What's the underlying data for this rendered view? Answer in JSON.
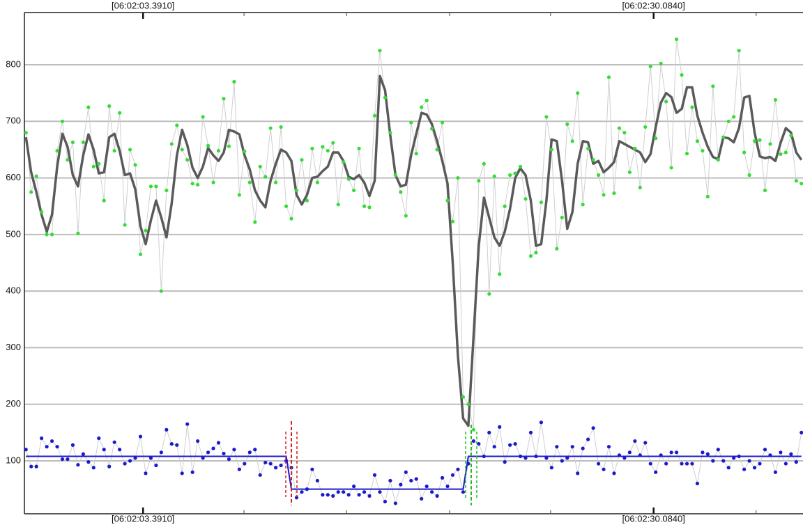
{
  "chart_data": {
    "type": "line",
    "xlim": [
      -0.3,
      149.3
    ],
    "ylim": [
      6.5,
      892.3
    ],
    "yticks": [
      100,
      200,
      300,
      400,
      500,
      600,
      700,
      800
    ],
    "xticks": [
      {
        "value": 22.5,
        "label": "[06:02:03.3910]"
      },
      {
        "value": 120.6,
        "label": "[06:02:30.0840]"
      }
    ],
    "xminorticks": [
      41.9,
      61.6,
      81.4,
      100.8,
      140.3
    ],
    "grid": true,
    "series": [
      {
        "color": "#33dd33",
        "kind": "points",
        "values": [
          680,
          575,
          603,
          540,
          500,
          500,
          648,
          700,
          632,
          663,
          502,
          663,
          725,
          620,
          625,
          560,
          727,
          648,
          715,
          517,
          650,
          623,
          465,
          507,
          585,
          585,
          400,
          578,
          660,
          693,
          650,
          632,
          590,
          588,
          708,
          657,
          592,
          648,
          740,
          656,
          770,
          570,
          647,
          592,
          522,
          620,
          602,
          688,
          592,
          690,
          550,
          528,
          578,
          632,
          560,
          652,
          592,
          655,
          648,
          662,
          553,
          628,
          598,
          578,
          652,
          550,
          548,
          710,
          825,
          742,
          680,
          605,
          575,
          533,
          698,
          643,
          725,
          737,
          687,
          650,
          698,
          560,
          523,
          600,
          213,
          200,
          155,
          595,
          625,
          395,
          603,
          430,
          550,
          605,
          608,
          620,
          563,
          462,
          468,
          557,
          708,
          650,
          475,
          530,
          695,
          665,
          750,
          553,
          652,
          632,
          605,
          570,
          778,
          573,
          688,
          680,
          610,
          652,
          583,
          690,
          797,
          670,
          802,
          735,
          618,
          845,
          782,
          643,
          725,
          665,
          648,
          567,
          762,
          632,
          672,
          700,
          708,
          825,
          645,
          605,
          665,
          667,
          578,
          660,
          738,
          642,
          645,
          675,
          595,
          590
        ]
      },
      {
        "color": "#5a5a5a",
        "kind": "smooth",
        "values": [
          672,
          610,
          575,
          535,
          505,
          535,
          620,
          678,
          655,
          605,
          585,
          640,
          677,
          650,
          608,
          610,
          672,
          678,
          648,
          605,
          608,
          580,
          515,
          483,
          525,
          560,
          530,
          495,
          555,
          640,
          685,
          658,
          618,
          600,
          620,
          653,
          640,
          630,
          645,
          685,
          682,
          677,
          640,
          615,
          578,
          560,
          548,
          595,
          625,
          650,
          645,
          630,
          570,
          553,
          570,
          600,
          602,
          612,
          620,
          645,
          645,
          630,
          602,
          598,
          605,
          592,
          568,
          595,
          780,
          755,
          675,
          605,
          585,
          588,
          640,
          678,
          715,
          712,
          695,
          665,
          630,
          590,
          450,
          285,
          175,
          162,
          320,
          480,
          565,
          530,
          495,
          480,
          505,
          545,
          600,
          617,
          605,
          560,
          480,
          483,
          560,
          668,
          665,
          595,
          510,
          540,
          625,
          665,
          663,
          625,
          630,
          610,
          618,
          628,
          665,
          660,
          655,
          650,
          645,
          628,
          642,
          690,
          733,
          750,
          743,
          715,
          722,
          760,
          760,
          710,
          680,
          655,
          637,
          633,
          672,
          670,
          663,
          688,
          742,
          745,
          680,
          638,
          635,
          637,
          630,
          662,
          688,
          680,
          645,
          632
        ]
      },
      {
        "color": "#1a1acc",
        "kind": "points",
        "values": [
          120,
          90,
          90,
          140,
          125,
          135,
          125,
          103,
          103,
          128,
          93,
          112,
          98,
          88,
          140,
          120,
          90,
          133,
          120,
          95,
          100,
          105,
          143,
          78,
          105,
          92,
          115,
          155,
          130,
          128,
          78,
          165,
          80,
          135,
          105,
          115,
          122,
          132,
          113,
          103,
          120,
          85,
          95,
          115,
          120,
          75,
          97,
          95,
          88,
          92,
          100,
          88,
          35,
          45,
          50,
          85,
          65,
          40,
          40,
          38,
          45,
          45,
          40,
          55,
          40,
          45,
          38,
          75,
          45,
          28,
          65,
          25,
          58,
          80,
          65,
          68,
          33,
          55,
          45,
          38,
          70,
          55,
          75,
          85,
          45,
          95,
          135,
          130,
          108,
          150,
          125,
          160,
          98,
          128,
          130,
          108,
          105,
          150,
          108,
          168,
          105,
          88,
          125,
          100,
          105,
          125,
          78,
          122,
          138,
          158,
          95,
          85,
          125,
          78,
          110,
          105,
          115,
          135,
          110,
          132,
          95,
          80,
          110,
          95,
          115,
          115,
          95,
          95,
          95,
          60,
          115,
          112,
          100,
          120,
          100,
          88,
          105,
          108,
          85,
          100,
          88,
          95,
          120,
          110,
          80,
          115,
          95,
          112,
          98,
          150
        ]
      },
      {
        "color": "#1a1ad0",
        "kind": "step",
        "values": [
          108,
          108,
          108,
          108,
          108,
          108,
          108,
          108,
          108,
          108,
          108,
          108,
          108,
          108,
          108,
          108,
          108,
          108,
          108,
          108,
          108,
          108,
          108,
          108,
          108,
          108,
          108,
          108,
          108,
          108,
          108,
          108,
          108,
          108,
          108,
          108,
          108,
          108,
          108,
          108,
          108,
          108,
          108,
          108,
          108,
          108,
          108,
          108,
          108,
          108,
          108,
          50,
          50,
          50,
          50,
          50,
          50,
          50,
          50,
          50,
          50,
          50,
          50,
          50,
          50,
          50,
          50,
          50,
          50,
          50,
          50,
          50,
          50,
          50,
          50,
          50,
          50,
          50,
          50,
          50,
          50,
          50,
          50,
          50,
          50,
          108,
          108,
          108,
          108,
          108,
          108,
          108,
          108,
          108,
          108,
          108,
          108,
          108,
          108,
          108,
          108,
          108,
          108,
          108,
          108,
          108,
          108,
          108,
          108,
          108,
          108,
          108,
          108,
          108,
          108,
          108,
          108,
          108,
          108,
          108,
          108,
          108,
          108,
          108,
          108,
          108,
          108,
          108,
          108,
          108,
          108,
          108,
          108,
          108,
          108,
          108,
          108,
          108,
          108,
          108,
          108,
          108,
          108,
          108,
          108,
          108,
          108,
          108,
          108,
          108
        ]
      }
    ]
  }
}
